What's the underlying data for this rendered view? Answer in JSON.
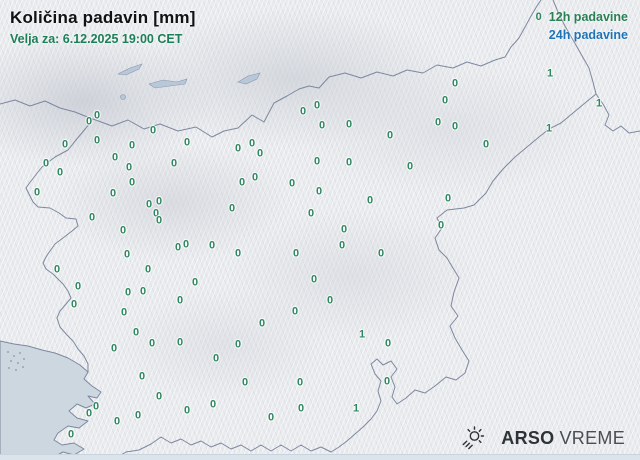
{
  "header": {
    "title": "Količina padavin [mm]",
    "subtitle": "Velja za: 6.12.2025 19:00 CET"
  },
  "legend": {
    "sample_value": "0",
    "label_12h": "12h padavine",
    "label_24h": "24h padavine",
    "color_12h": "#2a7f55",
    "color_24h": "#1f74b8"
  },
  "branding": {
    "agency": "ARSO",
    "product": "VREME",
    "icon": "sun-rain-icon"
  },
  "map": {
    "region": "Slovenia",
    "unit": "mm",
    "displayed_period": "12h padavine",
    "value_color": "#2e8660",
    "stations": [
      [
        97,
        116,
        0
      ],
      [
        89,
        122,
        0
      ],
      [
        153,
        131,
        0
      ],
      [
        97,
        141,
        0
      ],
      [
        65,
        145,
        0
      ],
      [
        132,
        146,
        0
      ],
      [
        187,
        143,
        0
      ],
      [
        115,
        158,
        0
      ],
      [
        46,
        164,
        0
      ],
      [
        174,
        164,
        0
      ],
      [
        129,
        168,
        0
      ],
      [
        60,
        173,
        0
      ],
      [
        132,
        183,
        0
      ],
      [
        37,
        193,
        0
      ],
      [
        113,
        194,
        0
      ],
      [
        159,
        202,
        0
      ],
      [
        149,
        205,
        0
      ],
      [
        156,
        214,
        0
      ],
      [
        159,
        221,
        0
      ],
      [
        92,
        218,
        0
      ],
      [
        123,
        231,
        0
      ],
      [
        186,
        245,
        0
      ],
      [
        178,
        248,
        0
      ],
      [
        212,
        246,
        0
      ],
      [
        127,
        255,
        0
      ],
      [
        57,
        270,
        0
      ],
      [
        148,
        270,
        0
      ],
      [
        78,
        287,
        0
      ],
      [
        195,
        283,
        0
      ],
      [
        128,
        293,
        0
      ],
      [
        143,
        292,
        0
      ],
      [
        180,
        301,
        0
      ],
      [
        74,
        305,
        0
      ],
      [
        124,
        313,
        0
      ],
      [
        317,
        106,
        0
      ],
      [
        303,
        112,
        0
      ],
      [
        322,
        126,
        0
      ],
      [
        349,
        125,
        0
      ],
      [
        390,
        136,
        0
      ],
      [
        252,
        144,
        0
      ],
      [
        238,
        149,
        0
      ],
      [
        260,
        154,
        0
      ],
      [
        317,
        162,
        0
      ],
      [
        349,
        163,
        0
      ],
      [
        410,
        167,
        0
      ],
      [
        255,
        178,
        0
      ],
      [
        242,
        183,
        0
      ],
      [
        292,
        184,
        0
      ],
      [
        319,
        192,
        0
      ],
      [
        370,
        201,
        0
      ],
      [
        232,
        209,
        0
      ],
      [
        311,
        214,
        0
      ],
      [
        344,
        230,
        0
      ],
      [
        342,
        246,
        0
      ],
      [
        238,
        254,
        0
      ],
      [
        296,
        254,
        0
      ],
      [
        381,
        254,
        0
      ],
      [
        314,
        280,
        0
      ],
      [
        330,
        301,
        0
      ],
      [
        295,
        312,
        0
      ],
      [
        262,
        324,
        0
      ],
      [
        455,
        84,
        0
      ],
      [
        445,
        101,
        0
      ],
      [
        438,
        123,
        0
      ],
      [
        455,
        127,
        0
      ],
      [
        486,
        145,
        0
      ],
      [
        550,
        74,
        1
      ],
      [
        599,
        104,
        1
      ],
      [
        549,
        129,
        1
      ],
      [
        448,
        199,
        0
      ],
      [
        441,
        226,
        0
      ],
      [
        136,
        333,
        0
      ],
      [
        152,
        344,
        0
      ],
      [
        180,
        343,
        0
      ],
      [
        114,
        349,
        0
      ],
      [
        142,
        377,
        0
      ],
      [
        159,
        397,
        0
      ],
      [
        96,
        407,
        0
      ],
      [
        89,
        414,
        0
      ],
      [
        187,
        411,
        0
      ],
      [
        138,
        416,
        0
      ],
      [
        117,
        422,
        0
      ],
      [
        71,
        435,
        0
      ],
      [
        362,
        335,
        1
      ],
      [
        238,
        345,
        0
      ],
      [
        388,
        344,
        0
      ],
      [
        216,
        359,
        0
      ],
      [
        245,
        383,
        0
      ],
      [
        300,
        383,
        0
      ],
      [
        387,
        382,
        0
      ],
      [
        213,
        405,
        0
      ],
      [
        301,
        409,
        0
      ],
      [
        356,
        409,
        1
      ],
      [
        271,
        418,
        0
      ]
    ]
  }
}
